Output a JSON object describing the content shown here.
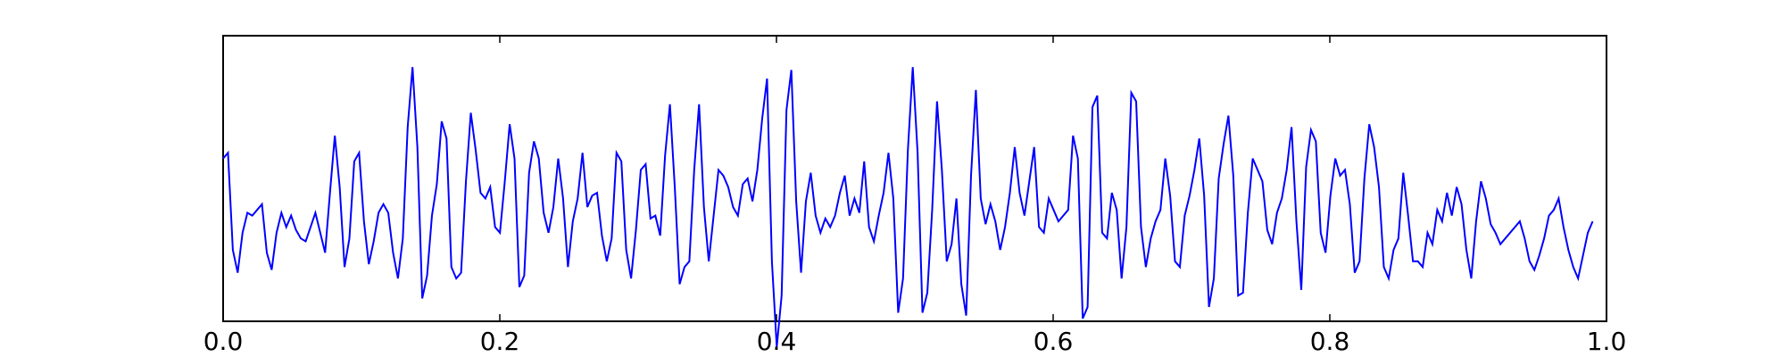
{
  "chart_data": {
    "type": "line",
    "title": "",
    "xlabel": "",
    "ylabel": "",
    "xlim": [
      0.0,
      1.0
    ],
    "ylim": [
      -2.5,
      2.5
    ],
    "grid": false,
    "y_ticks_visible": false,
    "x_ticks": [
      0.0,
      0.2,
      0.4,
      0.6,
      0.8,
      1.0
    ],
    "x_tick_labels": [
      "0.0",
      "0.2",
      "0.4",
      "0.6",
      "0.8",
      "1.0"
    ],
    "line_color": "#0000ff",
    "series": [
      {
        "y": [
          0.35,
          0.45,
          -1.25,
          -1.65,
          -0.95,
          -0.6,
          -0.65,
          -0.55,
          -0.45,
          -1.3,
          -1.6,
          -0.95,
          -0.6,
          -0.85,
          -0.65,
          -0.9,
          -1.05,
          -1.1,
          -0.85,
          -0.6,
          -0.95,
          -1.3,
          -0.25,
          0.75,
          -0.15,
          -1.55,
          -1.05,
          0.3,
          0.45,
          -0.75,
          -1.5,
          -1.1,
          -0.6,
          -0.45,
          -0.6,
          -1.3,
          -1.75,
          -1.05,
          0.9,
          1.95,
          0.55,
          -2.1,
          -1.7,
          -0.65,
          -0.1,
          1.0,
          0.7,
          -1.55,
          -1.75,
          -1.65,
          -0.05,
          1.15,
          0.5,
          -0.25,
          -0.35,
          -0.15,
          -0.85,
          -0.95,
          -0.05,
          0.95,
          0.35,
          -1.9,
          -1.7,
          0.1,
          0.65,
          0.35,
          -0.6,
          -0.95,
          -0.5,
          0.35,
          -0.35,
          -1.55,
          -0.75,
          -0.35,
          0.45,
          -0.5,
          -0.3,
          -0.25,
          -1.0,
          -1.45,
          -1.05,
          0.45,
          0.3,
          -1.25,
          -1.75,
          -0.9,
          0.15,
          0.25,
          -0.7,
          -0.65,
          -1.0,
          0.4,
          1.3,
          -0.15,
          -1.85,
          -1.55,
          -1.45,
          0.15,
          1.3,
          -0.5,
          -1.45,
          -0.65,
          0.15,
          0.05,
          -0.15,
          -0.5,
          -0.65,
          -0.1,
          0.0,
          -0.4,
          0.15,
          1.05,
          1.75,
          -1.45,
          -2.95,
          -2.05,
          1.2,
          1.9,
          -0.4,
          -1.65,
          -0.4,
          0.1,
          -0.65,
          -0.95,
          -0.7,
          -0.85,
          -0.65,
          -0.25,
          0.05,
          -0.65,
          -0.35,
          -0.6,
          0.3,
          -0.85,
          -1.1,
          -0.65,
          -0.25,
          0.45,
          -0.35,
          -2.35,
          -1.75,
          0.5,
          1.95,
          0.45,
          -2.35,
          -2.0,
          -0.55,
          1.35,
          0.15,
          -1.45,
          -1.15,
          -0.35,
          -1.85,
          -2.4,
          0.05,
          1.55,
          -0.35,
          -0.8,
          -0.45,
          -0.75,
          -1.25,
          -0.85,
          -0.25,
          0.55,
          -0.25,
          -0.65,
          -0.05,
          0.55,
          -0.85,
          -0.95,
          -0.35,
          -0.55,
          -0.75,
          -0.65,
          -0.55,
          0.75,
          0.35,
          -2.45,
          -2.25,
          1.25,
          1.45,
          -0.95,
          -1.05,
          -0.25,
          -0.55,
          -1.75,
          -0.85,
          1.5,
          1.35,
          -0.85,
          -1.55,
          -1.05,
          -0.75,
          -0.55,
          0.35,
          -0.3,
          -1.45,
          -1.55,
          -0.65,
          -0.3,
          0.15,
          0.7,
          -0.3,
          -2.25,
          -1.75,
          0.0,
          0.6,
          1.1,
          0.05,
          -2.05,
          -2.0,
          -0.6,
          0.35,
          0.15,
          -0.05,
          -0.9,
          -1.15,
          -0.6,
          -0.35,
          0.15,
          0.9,
          -0.75,
          -1.95,
          0.2,
          0.85,
          0.65,
          -0.95,
          -1.3,
          -0.3,
          0.35,
          0.05,
          0.15,
          -0.45,
          -1.65,
          -1.45,
          0.0,
          0.95,
          0.55,
          -0.15,
          -1.55,
          -1.75,
          -1.25,
          -1.05,
          0.1,
          -0.65,
          -1.45,
          -1.45,
          -1.55,
          -0.95,
          -1.15,
          -0.55,
          -0.75,
          -0.25,
          -0.65,
          -0.15,
          -0.45,
          -1.25,
          -1.75,
          -0.75,
          -0.05,
          -0.35,
          -0.8,
          -0.95,
          -1.15,
          -1.05,
          -0.95,
          -0.85,
          -0.75,
          -1.05,
          -1.45,
          -1.6,
          -1.35,
          -1.05,
          -0.65,
          -0.55,
          -0.35,
          -0.85,
          -1.25,
          -1.55,
          -1.75,
          -1.35,
          -0.95,
          -0.75
        ]
      }
    ]
  }
}
